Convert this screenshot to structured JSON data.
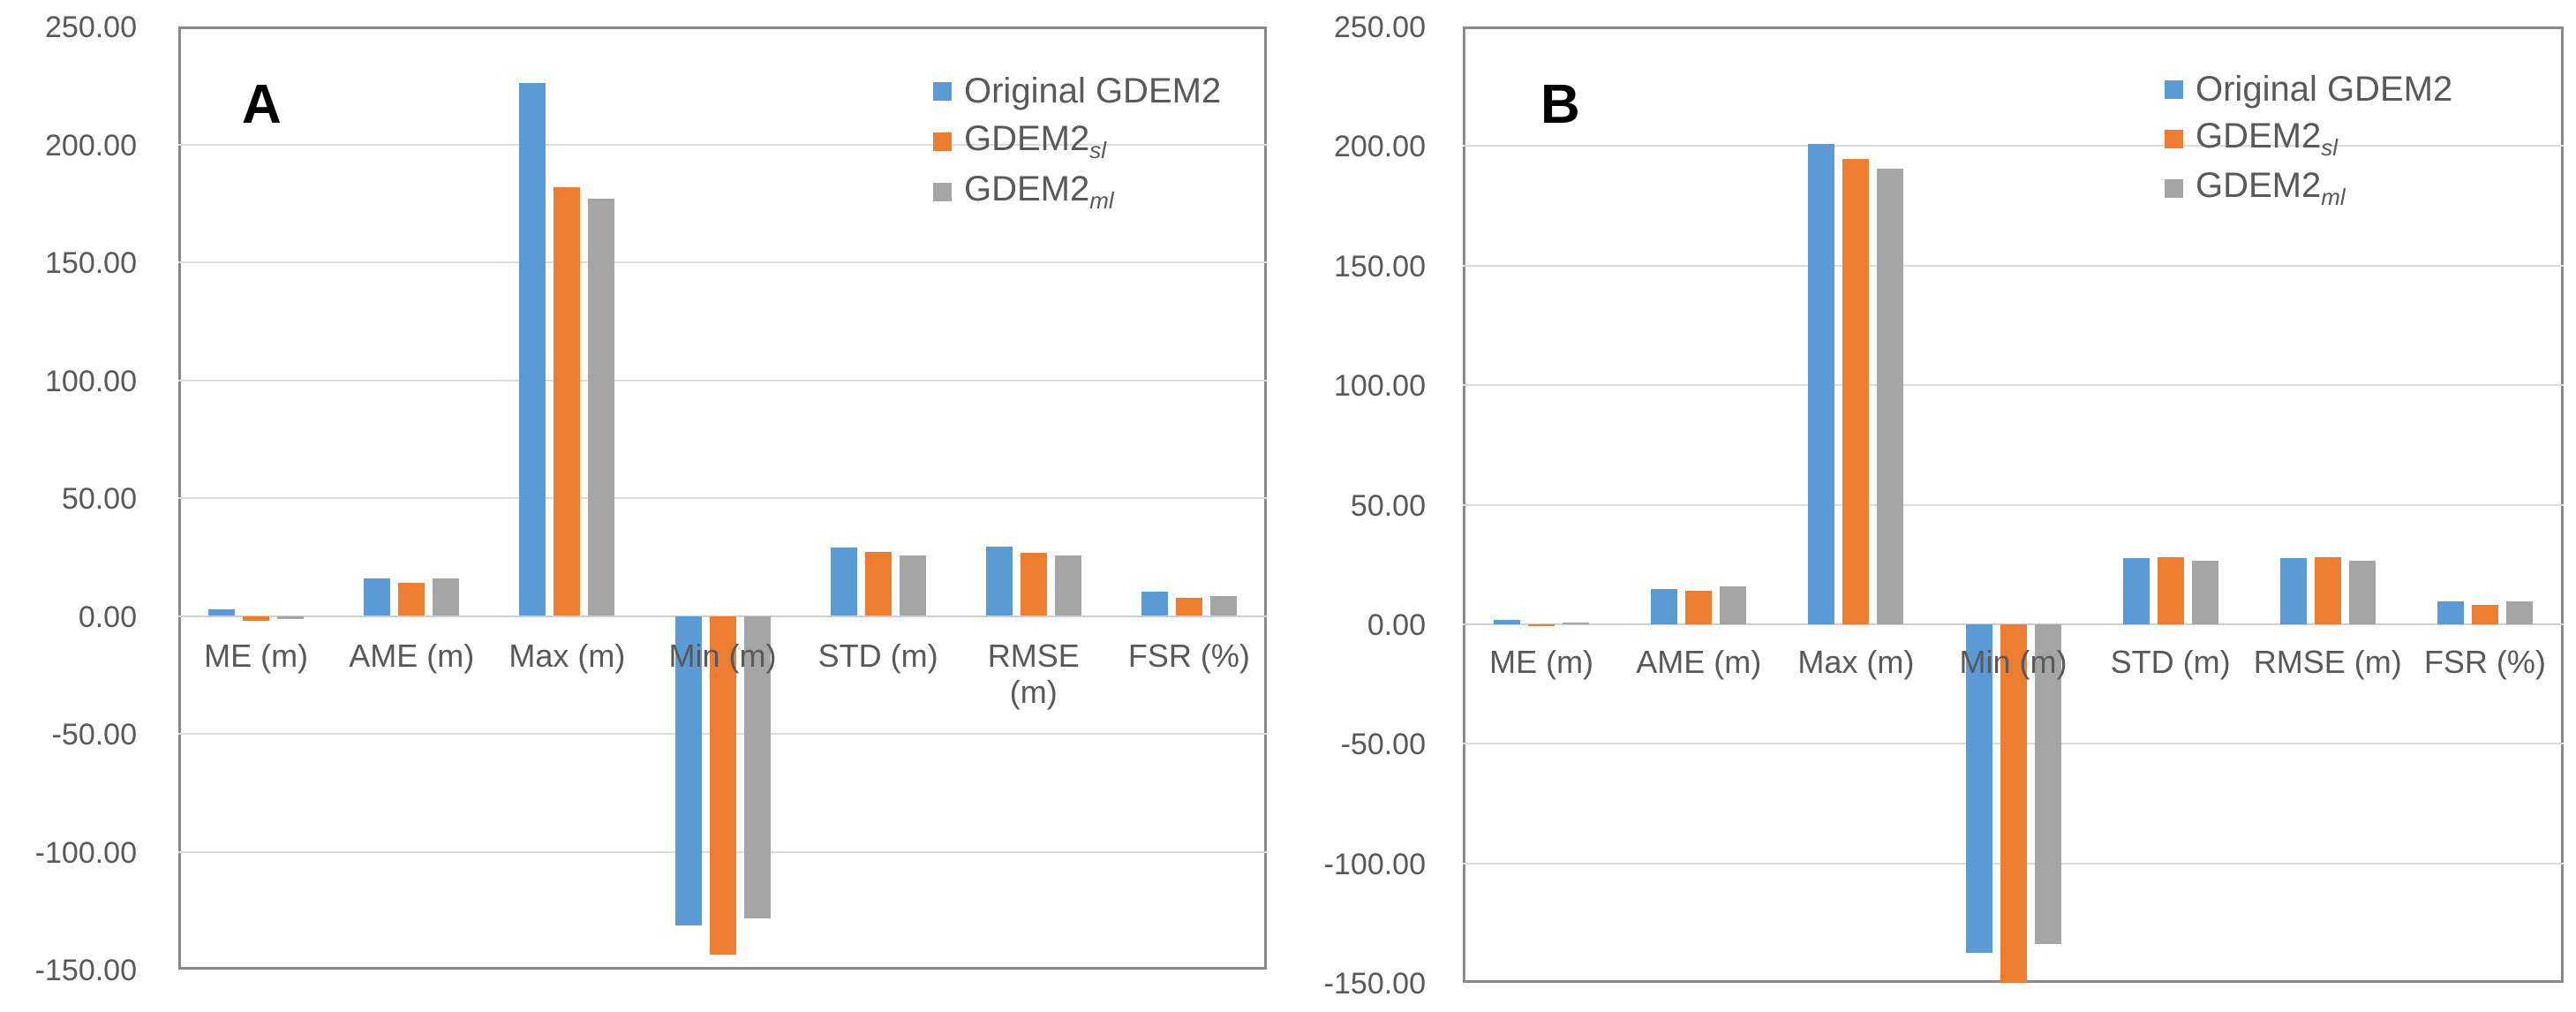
{
  "figure": {
    "background": "#ffffff",
    "text_color": "#595959",
    "gridline_color": "#dcdcdc",
    "plot_border_color": "#8a8a8a",
    "panels": [
      {
        "letter": "A"
      },
      {
        "letter": "B"
      }
    ]
  },
  "chart_data": [
    {
      "type": "bar",
      "panel_label": "A",
      "title": "",
      "xlabel": "",
      "ylabel": "",
      "categories": [
        "ME (m)",
        "AME (m)",
        "Max (m)",
        "Min (m)",
        "STD (m)",
        "RMSE (m)",
        "FSR (%)"
      ],
      "series": [
        {
          "name": "Original GDEM2",
          "name_base": "Original GDEM2",
          "name_sub": "",
          "color": "#5B9BD5",
          "values": [
            2.8,
            15.8,
            226.0,
            -131.2,
            28.9,
            29.3,
            10.2
          ]
        },
        {
          "name": "GDEM2sl",
          "name_base": "GDEM2",
          "name_sub": "sl",
          "color": "#ED7D31",
          "values": [
            -2.2,
            14.0,
            182.0,
            -143.8,
            27.1,
            26.8,
            7.5
          ]
        },
        {
          "name": "GDEM2ml",
          "name_base": "GDEM2",
          "name_sub": "ml",
          "color": "#A5A5A5",
          "values": [
            -1.3,
            15.8,
            177.0,
            -128.4,
            25.8,
            25.8,
            8.6
          ]
        }
      ],
      "ylim": [
        -150,
        250
      ],
      "ytick_step": 50,
      "yticks": [
        "250.00",
        "200.00",
        "150.00",
        "100.00",
        "50.00",
        "0.00",
        "-50.00",
        "-100.00",
        "-150.00"
      ],
      "grid": true,
      "legend_position": "top-right"
    },
    {
      "type": "bar",
      "panel_label": "B",
      "title": "",
      "xlabel": "",
      "ylabel": "",
      "categories": [
        "ME (m)",
        "AME (m)",
        "Max (m)",
        "Min (m)",
        "STD (m)",
        "RMSE (m)",
        "FSR (%)"
      ],
      "series": [
        {
          "name": "Original GDEM2",
          "name_base": "Original GDEM2",
          "name_sub": "",
          "color": "#5B9BD5",
          "values": [
            1.9,
            14.8,
            200.8,
            -137.3,
            27.5,
            27.8,
            9.4
          ]
        },
        {
          "name": "GDEM2sl",
          "name_base": "GDEM2",
          "name_sub": "sl",
          "color": "#ED7D31",
          "values": [
            0.1,
            13.9,
            194.7,
            -150.0,
            28.0,
            28.1,
            7.9
          ]
        },
        {
          "name": "GDEM2ml",
          "name_base": "GDEM2",
          "name_sub": "ml",
          "color": "#A5A5A5",
          "values": [
            0.6,
            15.7,
            190.5,
            -133.9,
            26.7,
            26.7,
            9.6
          ]
        }
      ],
      "ylim": [
        -150,
        250
      ],
      "ytick_step": 50,
      "yticks": [
        "250.00",
        "200.00",
        "150.00",
        "100.00",
        "50.00",
        "0.00",
        "-50.00",
        "-100.00",
        "-150.00"
      ],
      "grid": true,
      "legend_position": "top-right"
    }
  ]
}
